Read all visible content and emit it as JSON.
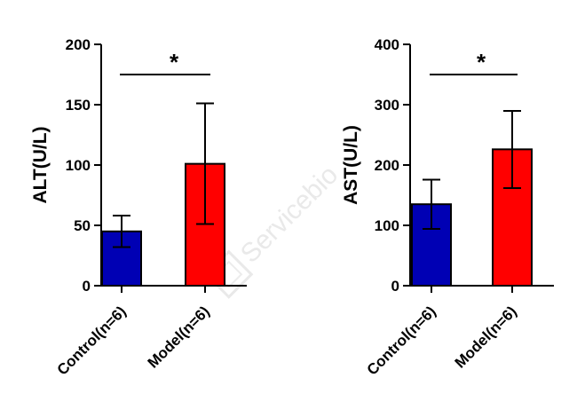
{
  "watermark": {
    "text": "Servicebio"
  },
  "colors": {
    "control": "#0000b4",
    "model": "#ff0000",
    "axis": "#000000"
  },
  "chart_data": [
    {
      "type": "bar",
      "categories": [
        "Control(n=6)",
        "Model(n=6)"
      ],
      "values": [
        45,
        101
      ],
      "error": [
        13,
        50
      ],
      "ylabel": "ALT(U/L)",
      "ylim": [
        0,
        200
      ],
      "yticks": [
        0,
        50,
        100,
        150,
        200
      ],
      "significance": "*",
      "grid": false
    },
    {
      "type": "bar",
      "categories": [
        "Control(n=6)",
        "Model(n=6)"
      ],
      "values": [
        135,
        226
      ],
      "error": [
        41,
        64
      ],
      "ylabel": "AST(U/L)",
      "ylim": [
        0,
        400
      ],
      "yticks": [
        0,
        100,
        200,
        300,
        400
      ],
      "significance": "*",
      "grid": false
    }
  ]
}
